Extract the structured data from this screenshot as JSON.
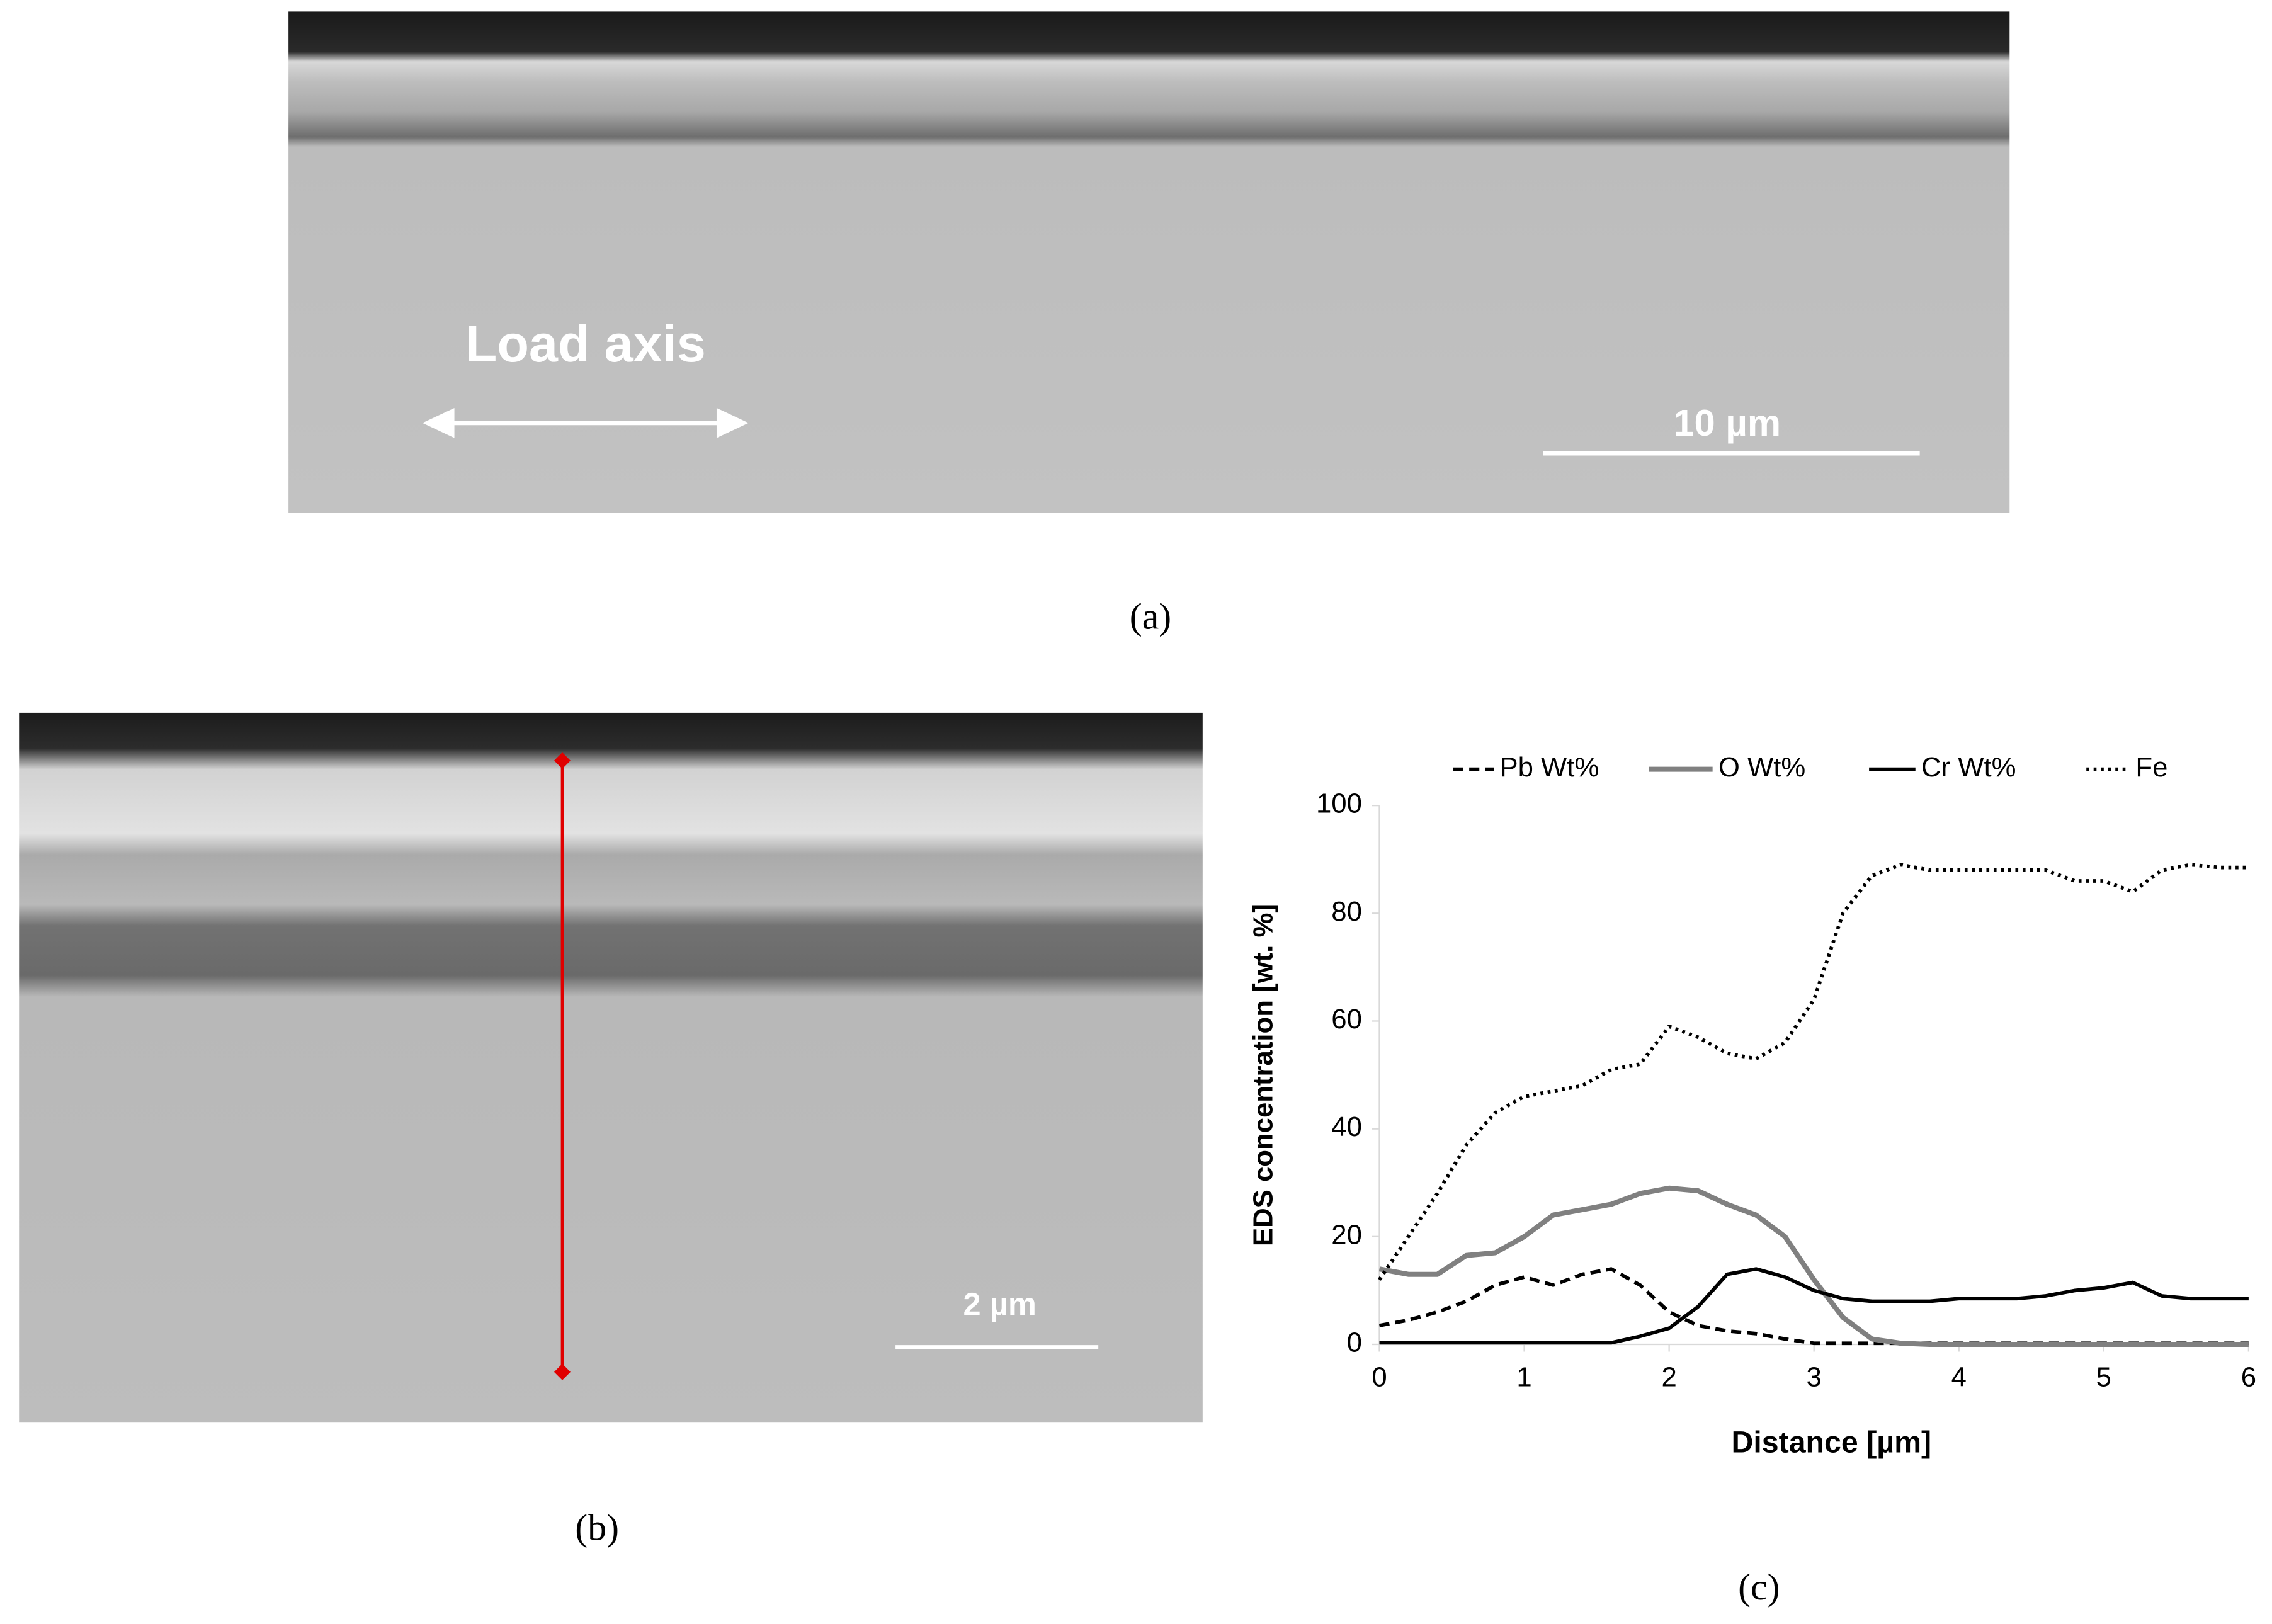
{
  "figure": {
    "panel_labels": [
      "(a)",
      "(b)",
      "(c)"
    ],
    "annotations": {
      "load_axis": "Load axis",
      "scale_a": "10 µm",
      "scale_b": "2 µm"
    }
  },
  "chart_data": {
    "type": "line",
    "xlabel": "Distance [µm]",
    "ylabel": "EDS concentration [wt. %]",
    "x": [
      0,
      0.2,
      0.4,
      0.6,
      0.8,
      1.0,
      1.2,
      1.4,
      1.6,
      1.8,
      2.0,
      2.2,
      2.4,
      2.6,
      2.8,
      3.0,
      3.2,
      3.4,
      3.6,
      3.8,
      4.0,
      4.2,
      4.4,
      4.6,
      4.8,
      5.0,
      5.2,
      5.4,
      5.6,
      5.8,
      6.0
    ],
    "xlim": [
      0,
      6
    ],
    "xticks": [
      0,
      1,
      2,
      3,
      4,
      5,
      6
    ],
    "ylim": [
      0,
      100
    ],
    "yticks": [
      0,
      20,
      40,
      60,
      80,
      100
    ],
    "legend": "top",
    "series": [
      {
        "name": "Pb Wt%",
        "color": "#000000",
        "dash": "dashed",
        "values": [
          3.5,
          4.5,
          6,
          8,
          11,
          12.5,
          11,
          13,
          14,
          11,
          6,
          3.5,
          2.5,
          2,
          1,
          0.2,
          0.2,
          0.2,
          0.2,
          0.2,
          0.2,
          0.2,
          0.2,
          0.2,
          0.2,
          0.2,
          0.2,
          0.2,
          0.2,
          0.2,
          0.2
        ]
      },
      {
        "name": "O Wt%",
        "color": "#808080",
        "dash": "solid",
        "values": [
          14,
          13,
          13,
          16.5,
          17,
          20,
          24,
          25,
          26,
          28,
          29,
          28.5,
          26,
          24,
          20,
          12,
          5,
          1,
          0.2,
          0,
          0,
          0,
          0,
          0,
          0,
          0,
          0,
          0,
          0,
          0,
          0
        ]
      },
      {
        "name": "Cr Wt%",
        "color": "#000000",
        "dash": "solid",
        "values": [
          0.3,
          0.3,
          0.3,
          0.3,
          0.3,
          0.3,
          0.3,
          0.3,
          0.3,
          1.5,
          3,
          7,
          13,
          14,
          12.5,
          10,
          8.5,
          8,
          8,
          8,
          8.5,
          8.5,
          8.5,
          9,
          10,
          10.5,
          11.5,
          9,
          8.5,
          8.5,
          8.5
        ]
      },
      {
        "name": "Fe",
        "color": "#000000",
        "dash": "dotted",
        "values": [
          12,
          20,
          28,
          37,
          43,
          46,
          47,
          48,
          51,
          52,
          59,
          57,
          54,
          53,
          56,
          64,
          80,
          87,
          89,
          88,
          88,
          88,
          88,
          88,
          86,
          86,
          84,
          88,
          89,
          88.5,
          88.5
        ]
      }
    ]
  }
}
